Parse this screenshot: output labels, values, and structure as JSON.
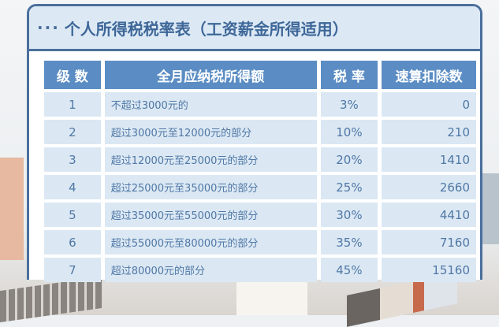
{
  "title": {
    "dots": "···",
    "text": "个人所得税税率表（工资薪金所得适用）"
  },
  "table": {
    "headers": [
      "级 数",
      "全月应纳税所得额",
      "税 率",
      "速算扣除数"
    ],
    "rows": [
      [
        "1",
        "不超过3000元的",
        "3%",
        "0"
      ],
      [
        "2",
        "超过3000元至12000元的部分",
        "10%",
        "210"
      ],
      [
        "3",
        "超过12000元至25000元的部分",
        "20%",
        "1410"
      ],
      [
        "4",
        "超过25000元至35000元的部分",
        "25%",
        "2660"
      ],
      [
        "5",
        "超过35000元至55000元的部分",
        "30%",
        "4410"
      ],
      [
        "6",
        "超过55000元至80000元的部分",
        "35%",
        "7160"
      ],
      [
        "7",
        "超过80000元的部分",
        "45%",
        "15160"
      ]
    ]
  },
  "colors": {
    "frame": "#4a6f9c",
    "header": "#5b8dc4",
    "cell": "#dbe8f4",
    "text": "#4f77a5"
  }
}
